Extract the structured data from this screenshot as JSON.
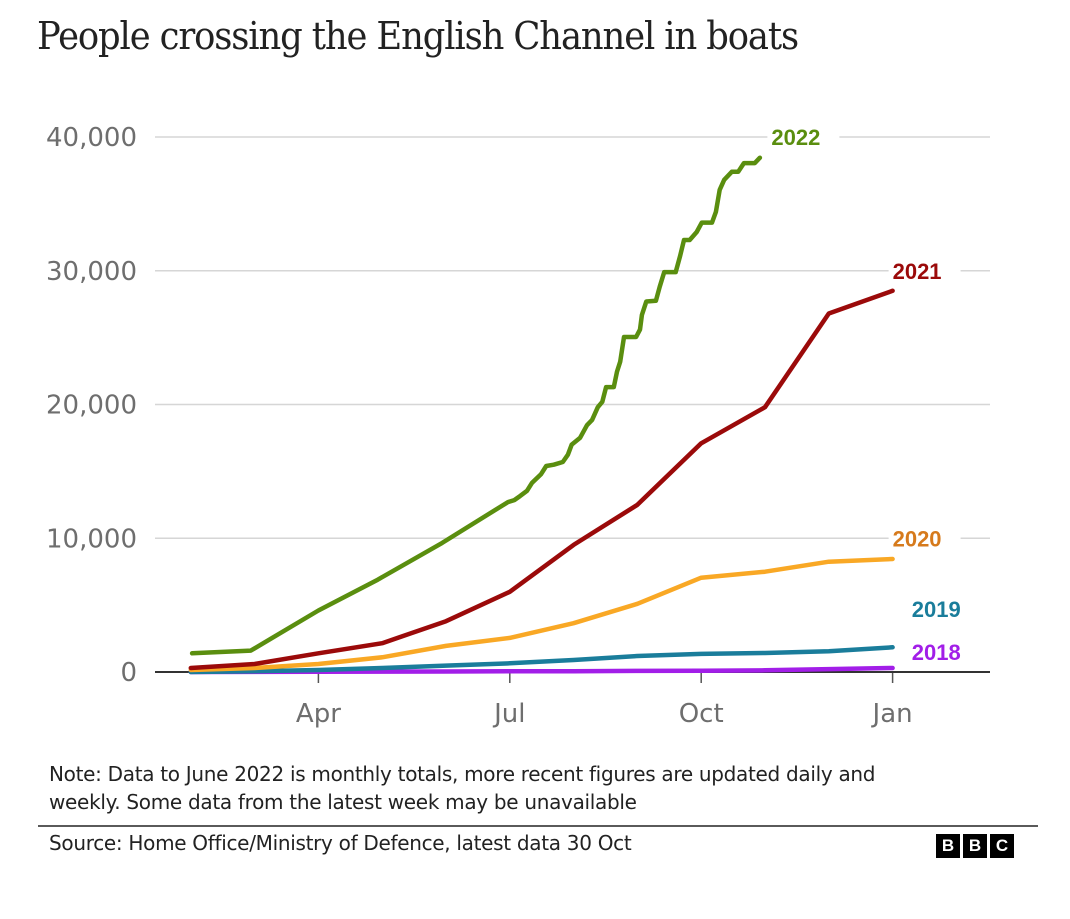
{
  "title": "People crossing the English Channel in boats",
  "note": "Note: Data to June 2022 is monthly totals, more recent figures are updated daily and weekly. Some data from the latest week may be unavailable",
  "source": "Source: Home Office/Ministry of Defence, latest data 30 Oct",
  "logo": {
    "letters": [
      "B",
      "B",
      "C"
    ],
    "name": "BBC"
  },
  "chart_data": {
    "type": "line",
    "title": "People crossing the English Channel in boats",
    "xlabel": "",
    "ylabel": "",
    "x_unit": "months since 1 Jan",
    "xlim": [
      0,
      13.2
    ],
    "ylim": [
      0,
      40000
    ],
    "grid": true,
    "legend": "direct labels at line ends (right)",
    "x_ticks": [
      {
        "value": 3,
        "label": "Apr"
      },
      {
        "value": 6,
        "label": "Jul"
      },
      {
        "value": 9,
        "label": "Oct"
      },
      {
        "value": 12,
        "label": "Jan"
      }
    ],
    "y_ticks": [
      {
        "value": 0,
        "label": "0"
      },
      {
        "value": 10000,
        "label": "10,000"
      },
      {
        "value": 20000,
        "label": "20,000"
      },
      {
        "value": 30000,
        "label": "30,000"
      },
      {
        "value": 40000,
        "label": "40,000"
      }
    ],
    "series": [
      {
        "name": "2018",
        "color": "#a21ee8",
        "label_color": "#a21ee8",
        "label_at": [
          12.3,
          1500
        ],
        "points": [
          [
            1,
            0
          ],
          [
            2,
            10
          ],
          [
            3,
            20
          ],
          [
            4,
            30
          ],
          [
            5,
            40
          ],
          [
            6,
            50
          ],
          [
            7,
            60
          ],
          [
            8,
            80
          ],
          [
            9,
            100
          ],
          [
            10,
            130
          ],
          [
            11,
            220
          ],
          [
            12,
            300
          ]
        ]
      },
      {
        "name": "2019",
        "color": "#1a7d9b",
        "label_color": "#1a7d9b",
        "label_at": [
          12.3,
          4700
        ],
        "points": [
          [
            1,
            0
          ],
          [
            2,
            60
          ],
          [
            3,
            150
          ],
          [
            4,
            300
          ],
          [
            5,
            480
          ],
          [
            6,
            650
          ],
          [
            7,
            900
          ],
          [
            8,
            1200
          ],
          [
            9,
            1350
          ],
          [
            10,
            1420
          ],
          [
            11,
            1550
          ],
          [
            12,
            1850
          ]
        ]
      },
      {
        "name": "2020",
        "color": "#f9a825",
        "label_color": "#d67a1c",
        "label_at": [
          12.0,
          10000
        ],
        "points": [
          [
            1,
            150
          ],
          [
            2,
            300
          ],
          [
            3,
            600
          ],
          [
            4,
            1100
          ],
          [
            5,
            1950
          ],
          [
            6,
            2550
          ],
          [
            7,
            3650
          ],
          [
            8,
            5100
          ],
          [
            9,
            7050
          ],
          [
            10,
            7500
          ],
          [
            11,
            8250
          ],
          [
            12,
            8450
          ]
        ]
      },
      {
        "name": "2021",
        "color": "#9b0a0a",
        "label_color": "#9b0a0a",
        "label_at": [
          12.0,
          30000
        ],
        "points": [
          [
            1,
            300
          ],
          [
            2,
            600
          ],
          [
            3,
            1400
          ],
          [
            4,
            2150
          ],
          [
            5,
            3800
          ],
          [
            6,
            6000
          ],
          [
            7,
            9500
          ],
          [
            8,
            12500
          ],
          [
            9,
            17100
          ],
          [
            10,
            19800
          ],
          [
            11,
            26800
          ],
          [
            12,
            28500
          ]
        ]
      },
      {
        "name": "2022",
        "color": "#5a8e0f",
        "label_color": "#5a8e0f",
        "label_at": [
          10.1,
          40000
        ],
        "points": [
          [
            1.02,
            1400
          ],
          [
            1.94,
            1600
          ],
          [
            3.0,
            4600
          ],
          [
            3.93,
            6900
          ],
          [
            4.94,
            9650
          ],
          [
            5.97,
            12700
          ],
          [
            6.07,
            12850
          ],
          [
            6.16,
            13150
          ],
          [
            6.27,
            13550
          ],
          [
            6.35,
            14150
          ],
          [
            6.49,
            14800
          ],
          [
            6.57,
            15400
          ],
          [
            6.69,
            15500
          ],
          [
            6.83,
            15700
          ],
          [
            6.91,
            16250
          ],
          [
            6.97,
            17000
          ],
          [
            7.1,
            17500
          ],
          [
            7.21,
            18450
          ],
          [
            7.29,
            18850
          ],
          [
            7.38,
            19800
          ],
          [
            7.45,
            20200
          ],
          [
            7.51,
            21300
          ],
          [
            7.63,
            21300
          ],
          [
            7.68,
            22450
          ],
          [
            7.73,
            23200
          ],
          [
            7.79,
            25050
          ],
          [
            7.98,
            25050
          ],
          [
            8.04,
            25600
          ],
          [
            8.07,
            26700
          ],
          [
            8.14,
            27700
          ],
          [
            8.29,
            27750
          ],
          [
            8.35,
            28800
          ],
          [
            8.42,
            29900
          ],
          [
            8.6,
            29900
          ],
          [
            8.67,
            31100
          ],
          [
            8.73,
            32300
          ],
          [
            8.82,
            32300
          ],
          [
            8.93,
            32900
          ],
          [
            9.01,
            33600
          ],
          [
            9.17,
            33600
          ],
          [
            9.23,
            34400
          ],
          [
            9.29,
            36050
          ],
          [
            9.36,
            36800
          ],
          [
            9.48,
            37400
          ],
          [
            9.58,
            37400
          ],
          [
            9.67,
            38050
          ],
          [
            9.84,
            38050
          ],
          [
            9.92,
            38450
          ]
        ]
      }
    ]
  }
}
